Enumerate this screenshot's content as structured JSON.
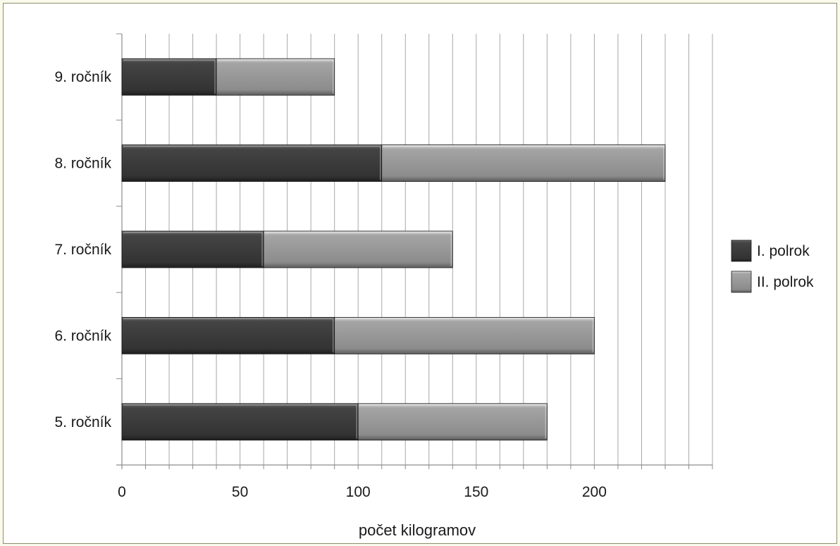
{
  "chart_data": {
    "type": "bar",
    "orientation": "horizontal",
    "stacked": true,
    "title": "",
    "xlabel": "počet kilogramov",
    "ylabel": "",
    "categories": [
      "5. ročník",
      "6. ročník",
      "7. ročník",
      "8. ročník",
      "9. ročník"
    ],
    "series": [
      {
        "name": "I. polrok",
        "values": [
          100,
          90,
          60,
          110,
          40
        ],
        "color": "#3a3a3a"
      },
      {
        "name": "II. polrok",
        "values": [
          80,
          110,
          80,
          120,
          50
        ],
        "color": "#8f8f8f"
      }
    ],
    "xlim": [
      0,
      250
    ],
    "x_ticks": [
      "0",
      "50",
      "100",
      "150",
      "200"
    ],
    "minor_grid_step": 10,
    "grid": true,
    "legend_position": "right"
  }
}
